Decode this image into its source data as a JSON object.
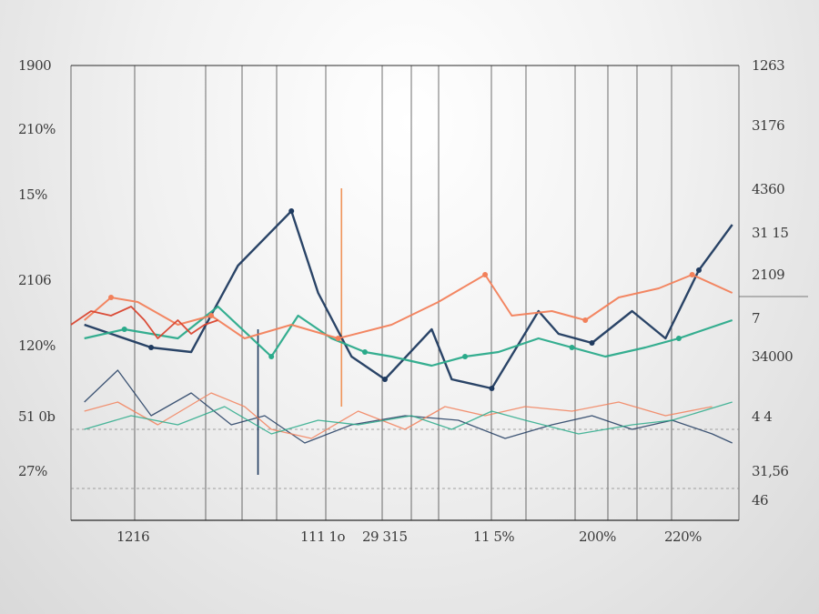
{
  "chart_data": {
    "type": "line",
    "title": "",
    "xlabel": "",
    "ylabel": "",
    "grid": true,
    "legend": "none",
    "x_tick_labels": [
      "1216",
      "111 1o",
      "29 315",
      "11 5%",
      "200%",
      "220%"
    ],
    "y_left_tick_labels": [
      "1900",
      "210%",
      "15%",
      "2106",
      "120%",
      "51 0b",
      "27%"
    ],
    "y_right_tick_labels": [
      "1263",
      "3176",
      "4360",
      "31 15",
      "2109",
      "7",
      "34000",
      "4 4",
      "31,56",
      "46"
    ],
    "xlim": [
      0,
      100
    ],
    "ylim": [
      0,
      100
    ],
    "colors": {
      "navy": "#1f3a5f",
      "teal": "#2aaa8a",
      "coral": "#f2805a",
      "red": "#d9432e",
      "orange_marker": "#f0945a",
      "grid": "#2b2b2b"
    },
    "series": [
      {
        "color_key": "navy",
        "x": [
          2,
          12,
          18,
          25,
          33,
          37,
          42,
          47,
          54,
          57,
          63,
          70,
          73,
          78,
          84,
          89,
          94,
          99
        ],
        "y": [
          43,
          38,
          37,
          56,
          68,
          50,
          36,
          31,
          42,
          31,
          29,
          46,
          41,
          39,
          46,
          40,
          55,
          65
        ]
      },
      {
        "color_key": "teal",
        "x": [
          2,
          8,
          16,
          22,
          30,
          34,
          39,
          44,
          48,
          54,
          59,
          64,
          70,
          75,
          80,
          86,
          91,
          99
        ],
        "y": [
          40,
          42,
          40,
          47,
          36,
          45,
          40,
          37,
          36,
          34,
          36,
          37,
          40,
          38,
          36,
          38,
          40,
          44
        ]
      },
      {
        "color_key": "coral",
        "x": [
          2,
          6,
          10,
          16,
          21,
          26,
          33,
          40,
          48,
          55,
          62,
          66,
          72,
          77,
          82,
          88,
          93,
          99
        ],
        "y": [
          44,
          49,
          48,
          43,
          45,
          40,
          43,
          40,
          43,
          48,
          54,
          45,
          46,
          44,
          49,
          51,
          54,
          50
        ]
      },
      {
        "color_key": "red",
        "x": [
          0,
          3,
          6,
          9,
          11,
          13,
          16,
          18,
          20,
          22
        ],
        "y": [
          43,
          46,
          45,
          47,
          44,
          40,
          44,
          41,
          43,
          44
        ]
      },
      {
        "color_key": "navy",
        "x": [
          2,
          7,
          12,
          18,
          24,
          29,
          35,
          42,
          50,
          58,
          65,
          72,
          78,
          84,
          90,
          96,
          99
        ],
        "y": [
          26,
          33,
          23,
          28,
          21,
          23,
          17,
          21,
          23,
          22,
          18,
          21,
          23,
          20,
          22,
          19,
          17
        ]
      },
      {
        "color_key": "coral",
        "x": [
          2,
          7,
          13,
          21,
          26,
          30,
          36,
          43,
          50,
          56,
          62,
          68,
          75,
          82,
          89,
          96
        ],
        "y": [
          24,
          26,
          21,
          28,
          25,
          20,
          18,
          24,
          20,
          25,
          23,
          25,
          24,
          26,
          23,
          25
        ]
      },
      {
        "color_key": "teal",
        "x": [
          2,
          9,
          16,
          23,
          30,
          37,
          43,
          51,
          57,
          63,
          68,
          76,
          84,
          90,
          99
        ],
        "y": [
          20,
          23,
          21,
          25,
          19,
          22,
          21,
          23,
          20,
          24,
          22,
          19,
          21,
          22,
          26
        ]
      }
    ],
    "vertical_markers": [
      {
        "color_key": "orange_marker",
        "x": 40.5,
        "y_from": 25,
        "y_to": 73
      },
      {
        "color_key": "navy",
        "x": 28,
        "y_from": 10,
        "y_to": 42
      }
    ]
  }
}
